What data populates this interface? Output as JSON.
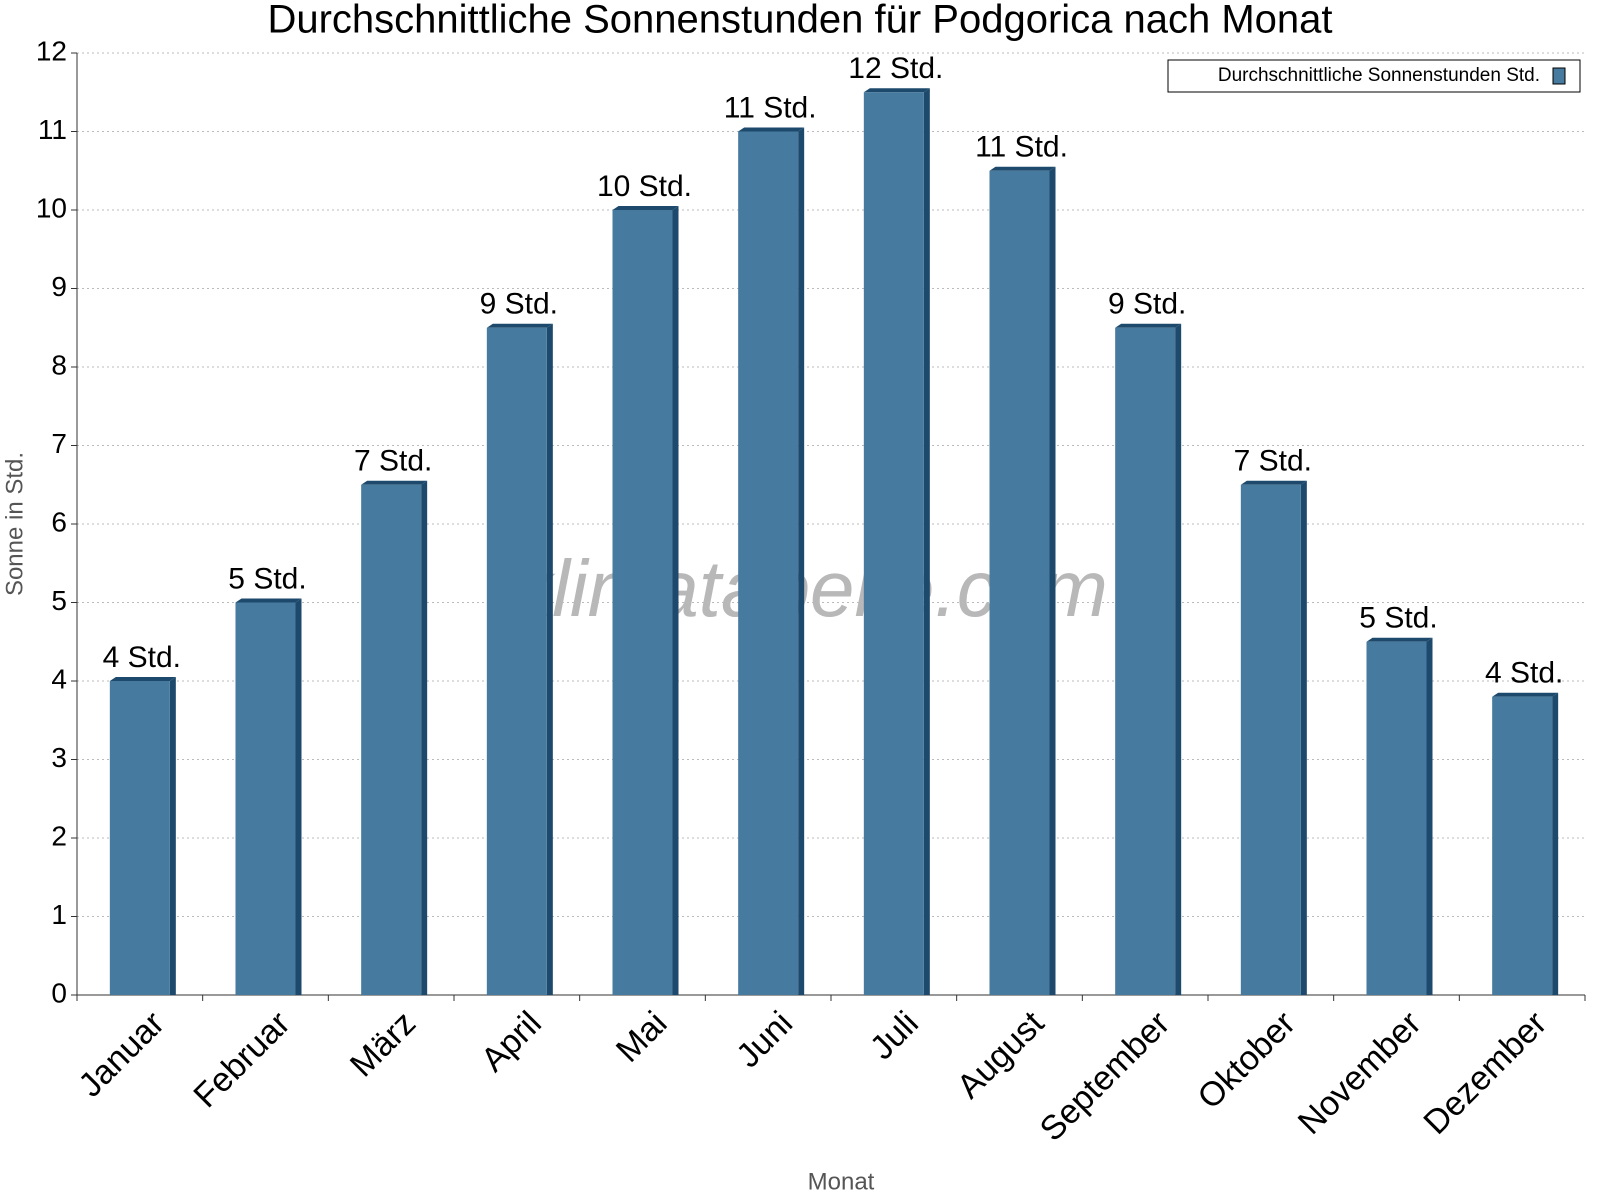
{
  "chart_data": {
    "type": "bar",
    "title": "Durchschnittliche Sonnenstunden für Podgorica nach Monat",
    "watermark": "klimatabelle.com",
    "x_label": "Monat",
    "y_label": "Sonne in Std.",
    "categories": [
      "Januar",
      "Februar",
      "März",
      "April",
      "Mai",
      "Juni",
      "Juli",
      "August",
      "September",
      "Oktober",
      "November",
      "Dezember"
    ],
    "series": [
      {
        "name": "Durchschnittliche Sonnenstunden Std.",
        "color": "#467a9e",
        "values": [
          4,
          5,
          6.5,
          8.5,
          10,
          11,
          11.5,
          10.5,
          8.5,
          6.5,
          4.5,
          3.8
        ],
        "value_labels": [
          "4 Std.",
          "5 Std.",
          "7 Std.",
          "9 Std.",
          "10 Std.",
          "11 Std.",
          "12 Std.",
          "11 Std.",
          "9 Std.",
          "7 Std.",
          "5 Std.",
          "4 Std."
        ]
      }
    ],
    "ylim": [
      0,
      12
    ],
    "yticks": [
      0,
      1,
      2,
      3,
      4,
      5,
      6,
      7,
      8,
      9,
      10,
      11,
      12
    ],
    "grid": true,
    "legend": "top-right"
  }
}
